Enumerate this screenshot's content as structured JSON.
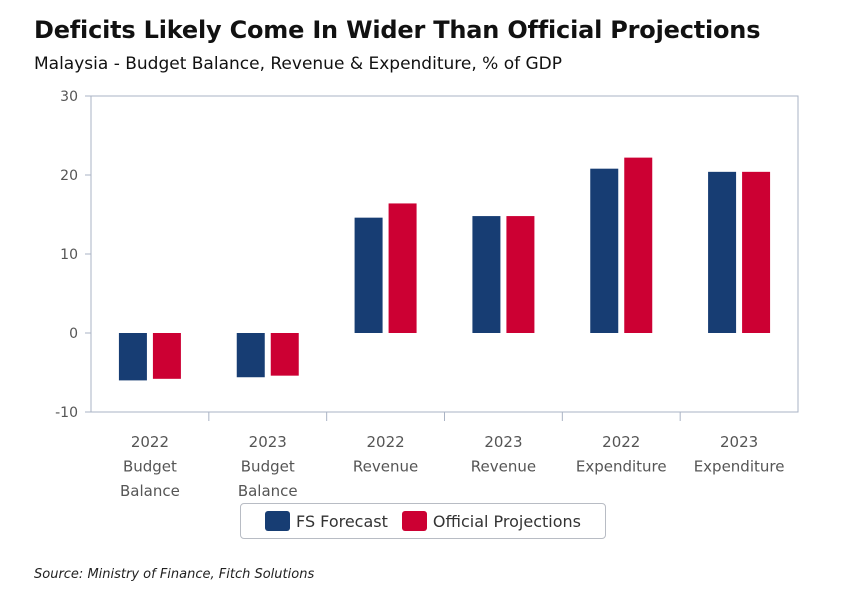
{
  "title": "Deficits Likely Come In Wider Than Official Projections",
  "subtitle": "Malaysia - Budget Balance, Revenue & Expenditure, % of GDP",
  "source": "Source: Ministry of Finance, Fitch Solutions",
  "colors": {
    "fs_forecast": "#173d73",
    "official": "#cc0033",
    "axis": "#aab3c4",
    "text": "#555555"
  },
  "chart_data": {
    "type": "bar",
    "categories": [
      [
        "2022",
        "Budget",
        "Balance"
      ],
      [
        "2023",
        "Budget",
        "Balance"
      ],
      [
        "2022",
        "Revenue"
      ],
      [
        "2023",
        "Revenue"
      ],
      [
        "2022",
        "Expenditure"
      ],
      [
        "2023",
        "Expenditure"
      ]
    ],
    "series": [
      {
        "name": "FS Forecast",
        "values": [
          -6.0,
          -5.6,
          14.6,
          14.8,
          20.8,
          20.4
        ]
      },
      {
        "name": "Official Projections",
        "values": [
          -5.8,
          -5.4,
          16.4,
          14.8,
          22.2,
          20.4
        ]
      }
    ],
    "ylim": [
      -10,
      30
    ],
    "yticks": [
      30,
      20,
      10,
      0,
      -10
    ],
    "grid": false,
    "legend_position": "bottom"
  }
}
